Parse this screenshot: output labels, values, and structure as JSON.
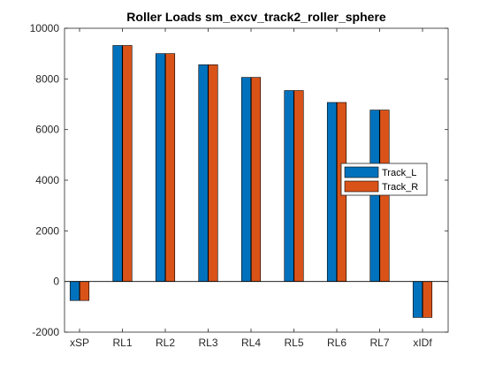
{
  "chart_data": {
    "type": "bar",
    "title": "Roller Loads sm_excv_track2_roller_sphere",
    "xlabel": "",
    "ylabel": "",
    "categories": [
      "xSP",
      "RL1",
      "RL2",
      "RL3",
      "RL4",
      "RL5",
      "RL6",
      "RL7",
      "xIDf"
    ],
    "series": [
      {
        "name": "Track_L",
        "color": "#0072BD",
        "values": [
          -750,
          9320,
          9000,
          8560,
          8060,
          7540,
          7070,
          6770,
          -1420
        ]
      },
      {
        "name": "Track_R",
        "color": "#D95319",
        "values": [
          -750,
          9320,
          9000,
          8560,
          8060,
          7540,
          7070,
          6770,
          -1420
        ]
      }
    ],
    "ylim": [
      -2000,
      10000
    ],
    "yticks": [
      -2000,
      0,
      2000,
      4000,
      6000,
      8000,
      10000
    ],
    "ytick_labels": [
      "-2000",
      "0",
      "2000",
      "4000",
      "6000",
      "8000",
      "10000"
    ],
    "grid": false,
    "legend_position": "east"
  }
}
